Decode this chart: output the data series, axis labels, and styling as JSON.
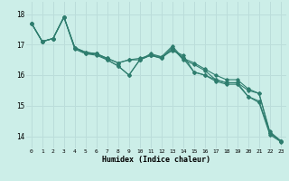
{
  "xlabel": "Humidex (Indice chaleur)",
  "bg_color": "#cceee8",
  "line_color": "#2e7d6e",
  "grid_color": "#bbddda",
  "xlim": [
    -0.5,
    23.5
  ],
  "ylim": [
    13.6,
    18.4
  ],
  "yticks": [
    14,
    15,
    16,
    17,
    18
  ],
  "xticks": [
    0,
    1,
    2,
    3,
    4,
    5,
    6,
    7,
    8,
    9,
    10,
    11,
    12,
    13,
    14,
    15,
    16,
    17,
    18,
    19,
    20,
    21,
    22,
    23
  ],
  "series": [
    [
      17.7,
      17.1,
      17.2,
      17.9,
      16.9,
      16.75,
      16.7,
      16.55,
      16.4,
      16.5,
      16.5,
      16.65,
      16.55,
      16.9,
      16.5,
      16.35,
      16.15,
      15.85,
      15.75,
      15.75,
      15.5,
      15.4,
      14.1,
      13.85
    ],
    [
      17.7,
      17.1,
      17.2,
      17.9,
      16.9,
      16.75,
      16.7,
      16.55,
      16.4,
      16.5,
      16.55,
      16.65,
      16.6,
      16.95,
      16.55,
      16.4,
      16.2,
      16.0,
      15.85,
      15.85,
      15.55,
      15.4,
      14.15,
      13.85
    ],
    [
      17.7,
      17.1,
      17.2,
      17.9,
      16.9,
      16.7,
      16.7,
      16.5,
      16.3,
      16.0,
      16.5,
      16.7,
      16.6,
      16.8,
      16.65,
      16.1,
      16.0,
      15.85,
      15.75,
      15.75,
      15.3,
      15.15,
      14.1,
      13.85
    ],
    [
      17.7,
      17.1,
      17.2,
      17.9,
      16.85,
      16.7,
      16.65,
      16.5,
      16.3,
      16.0,
      16.5,
      16.65,
      16.55,
      16.85,
      16.55,
      16.1,
      16.0,
      15.8,
      15.7,
      15.7,
      15.3,
      15.1,
      14.05,
      13.82
    ]
  ]
}
